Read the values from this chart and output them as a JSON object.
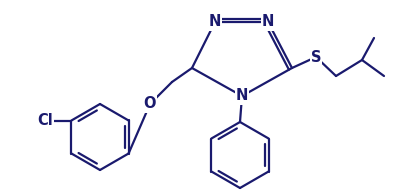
{
  "bg_color": "#ffffff",
  "bond_color": "#1a1a6e",
  "atom_color": "#1a1a6e",
  "line_width": 1.6,
  "font_size": 10.5,
  "font_weight": "bold",
  "figw": 3.94,
  "figh": 1.9,
  "dpi": 100,
  "xlim": [
    0,
    394
  ],
  "ylim": [
    0,
    190
  ]
}
